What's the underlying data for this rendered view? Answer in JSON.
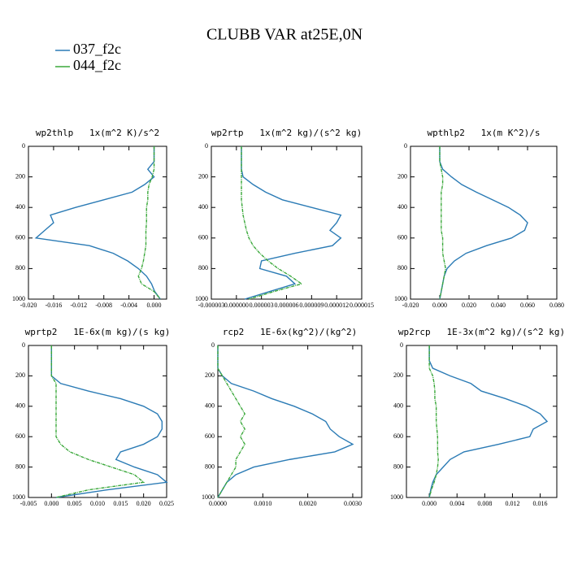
{
  "title": "CLUBB VAR at25E,0N",
  "legend": [
    {
      "name": "037_f2c",
      "color": "#2b7bb5"
    },
    {
      "name": "044_f2c",
      "color": "#3aa83a"
    }
  ],
  "chart_data": [
    {
      "type": "line",
      "title": "wp2thlp   1x(m^2 K)/s^2",
      "levels": [
        0,
        100,
        150,
        200,
        250,
        300,
        350,
        400,
        450,
        500,
        550,
        600,
        650,
        700,
        750,
        800,
        850,
        900,
        950,
        1000
      ],
      "series": [
        {
          "values": [
            0,
            0,
            -0.001,
            0,
            -0.0015,
            -0.0035,
            -0.008,
            -0.0125,
            -0.0165,
            -0.016,
            -0.0174,
            -0.0188,
            -0.0103,
            -0.0065,
            -0.0042,
            -0.0025,
            -0.0012,
            -0.0004,
            0.0001,
            0.001
          ]
        },
        {
          "values": [
            0,
            0,
            0,
            -0.0003,
            -0.0008,
            -0.001,
            -0.001,
            -0.0012,
            -0.0012,
            -0.0012,
            -0.0013,
            -0.0013,
            -0.0013,
            -0.0015,
            -0.0017,
            -0.002,
            -0.0025,
            -0.002,
            0,
            0.001
          ]
        }
      ],
      "xlim": [
        -0.02,
        0.002
      ],
      "xticks": [
        {
          "value": -0.02,
          "label": "-0.020"
        },
        {
          "value": -0.016,
          "label": "-0.016"
        },
        {
          "value": -0.012,
          "label": "-0.012"
        },
        {
          "value": -0.008,
          "label": "-0.008"
        },
        {
          "value": -0.004,
          "label": "-0.004"
        },
        {
          "value": 0,
          "label": "0.000"
        }
      ],
      "ylim": [
        1000,
        0
      ],
      "yticks": [
        0,
        200,
        400,
        600,
        800,
        1000
      ]
    },
    {
      "type": "line",
      "title": "wp2rtp   1x(m^2 kg)/(s^2 kg)",
      "levels": [
        0,
        100,
        150,
        200,
        250,
        300,
        350,
        400,
        450,
        500,
        550,
        600,
        650,
        700,
        750,
        800,
        850,
        900,
        950,
        1000
      ],
      "series": [
        {
          "values": [
            6e-07,
            6e-07,
            6e-07,
            8e-07,
            2e-06,
            3.5e-06,
            5.5e-06,
            9e-06,
            1.25e-05,
            1.2e-05,
            1.12e-05,
            1.25e-05,
            1.15e-05,
            7e-06,
            3e-06,
            2.8e-06,
            6e-06,
            7e-06,
            4e-06,
            1e-06
          ]
        },
        {
          "values": [
            6e-07,
            6e-07,
            6e-07,
            6e-07,
            6e-07,
            6e-07,
            6e-07,
            7e-07,
            8e-07,
            1e-06,
            1.2e-06,
            1.5e-06,
            2e-06,
            2.8e-06,
            3.8e-06,
            5e-06,
            6.5e-06,
            7.8e-06,
            4.5e-06,
            1.5e-06
          ]
        }
      ],
      "xlim": [
        -3e-06,
        1.5e-05
      ],
      "xticks": [
        {
          "value": -3e-06,
          "label": "-0.000003"
        },
        {
          "value": 0,
          "label": "0.000000"
        },
        {
          "value": 3e-06,
          "label": "0.000003"
        },
        {
          "value": 6e-06,
          "label": "0.000006"
        },
        {
          "value": 9e-06,
          "label": "0.000009"
        },
        {
          "value": 1.2e-05,
          "label": "0.000012"
        },
        {
          "value": 1.5e-05,
          "label": "0.000015"
        }
      ],
      "ylim": [
        1000,
        0
      ],
      "yticks": [
        0,
        200,
        400,
        600,
        800,
        1000
      ]
    },
    {
      "type": "line",
      "title": "wpthlp2   1x(m K^2)/s",
      "levels": [
        0,
        100,
        150,
        200,
        250,
        300,
        350,
        400,
        450,
        500,
        550,
        600,
        650,
        700,
        750,
        800,
        850,
        900,
        950,
        1000
      ],
      "series": [
        {
          "values": [
            0,
            0,
            0.002,
            0.008,
            0.015,
            0.025,
            0.036,
            0.047,
            0.055,
            0.06,
            0.058,
            0.049,
            0.032,
            0.018,
            0.01,
            0.005,
            0.003,
            0.002,
            0.001,
            0
          ]
        },
        {
          "values": [
            0,
            0,
            0.001,
            0.002,
            0.002,
            0.001,
            0.001,
            0.001,
            0.001,
            0.001,
            0.001,
            0.002,
            0.002,
            0.002,
            0.003,
            0.004,
            0.003,
            0.002,
            0.001,
            0
          ]
        }
      ],
      "xlim": [
        -0.02,
        0.08
      ],
      "xticks": [
        {
          "value": -0.02,
          "label": "-0.020"
        },
        {
          "value": 0,
          "label": "0.000"
        },
        {
          "value": 0.02,
          "label": "0.020"
        },
        {
          "value": 0.04,
          "label": "0.040"
        },
        {
          "value": 0.06,
          "label": "0.060"
        },
        {
          "value": 0.08,
          "label": "0.080"
        }
      ],
      "ylim": [
        1000,
        0
      ],
      "yticks": [
        0,
        200,
        400,
        600,
        800,
        1000
      ]
    },
    {
      "type": "line",
      "title": "wprtp2   1E-6x(m kg)/(s kg)",
      "levels": [
        0,
        100,
        150,
        200,
        250,
        300,
        350,
        400,
        450,
        500,
        550,
        600,
        650,
        700,
        750,
        800,
        850,
        900,
        950,
        1000
      ],
      "series": [
        {
          "values": [
            0,
            0,
            0,
            0,
            0.002,
            0.008,
            0.015,
            0.02,
            0.023,
            0.024,
            0.024,
            0.023,
            0.02,
            0.015,
            0.014,
            0.018,
            0.023,
            0.025,
            0.012,
            0.001
          ]
        },
        {
          "values": [
            0,
            0,
            0,
            0,
            0.001,
            0.001,
            0.001,
            0.001,
            0.001,
            0.001,
            0.001,
            0.001,
            0.002,
            0.004,
            0.008,
            0.013,
            0.018,
            0.02,
            0.008,
            0.001
          ]
        }
      ],
      "xlim": [
        -0.005,
        0.025
      ],
      "xticks": [
        {
          "value": -0.005,
          "label": "-0.005"
        },
        {
          "value": 0,
          "label": "0.000"
        },
        {
          "value": 0.005,
          "label": "0.005"
        },
        {
          "value": 0.01,
          "label": "0.010"
        },
        {
          "value": 0.015,
          "label": "0.015"
        },
        {
          "value": 0.02,
          "label": "0.020"
        },
        {
          "value": 0.025,
          "label": "0.025"
        }
      ],
      "ylim": [
        1000,
        0
      ],
      "yticks": [
        0,
        200,
        400,
        600,
        800,
        1000
      ]
    },
    {
      "type": "line",
      "title": "rcp2   1E-6x(kg^2)/(kg^2)",
      "levels": [
        0,
        100,
        150,
        200,
        250,
        300,
        350,
        400,
        450,
        500,
        550,
        600,
        650,
        700,
        750,
        800,
        850,
        900,
        950,
        1000
      ],
      "series": [
        {
          "values": [
            0,
            0,
            0,
            0.0001,
            0.0003,
            0.0008,
            0.0012,
            0.0017,
            0.0021,
            0.0024,
            0.0025,
            0.0027,
            0.003,
            0.0026,
            0.0016,
            0.0008,
            0.0004,
            0.0002,
            0.0001,
            0
          ]
        },
        {
          "values": [
            0,
            0,
            0,
            0.0001,
            0.0002,
            0.0003,
            0.0004,
            0.0005,
            0.0006,
            0.0005,
            0.0006,
            0.0005,
            0.0006,
            0.0005,
            0.0004,
            0.0004,
            0.0003,
            0.0002,
            0.0001,
            0
          ]
        }
      ],
      "xlim": [
        0,
        0.0032
      ],
      "xticks": [
        {
          "value": 0,
          "label": "0.0000"
        },
        {
          "value": 0.001,
          "label": "0.0010"
        },
        {
          "value": 0.002,
          "label": "0.0020"
        },
        {
          "value": 0.003,
          "label": "0.0030"
        }
      ],
      "ylim": [
        1000,
        0
      ],
      "yticks": [
        0,
        200,
        400,
        600,
        800,
        1000
      ]
    },
    {
      "type": "line",
      "title": "wp2rcp   1E-3x(m^2 kg)/(s^2 kg)",
      "levels": [
        0,
        100,
        150,
        200,
        250,
        300,
        350,
        400,
        450,
        500,
        550,
        600,
        650,
        700,
        750,
        800,
        850,
        900,
        950,
        1000
      ],
      "series": [
        {
          "values": [
            0,
            0,
            0.0005,
            0.003,
            0.006,
            0.0075,
            0.011,
            0.014,
            0.016,
            0.017,
            0.015,
            0.0145,
            0.01,
            0.005,
            0.003,
            0.002,
            0.001,
            0.0005,
            0.0002,
            0
          ]
        },
        {
          "values": [
            0,
            0,
            0,
            0.0005,
            0.0007,
            0.0008,
            0.0008,
            0.001,
            0.001,
            0.001,
            0.0011,
            0.0012,
            0.0012,
            0.0012,
            0.0013,
            0.0012,
            0.001,
            0.0007,
            0.0003,
            0
          ]
        }
      ],
      "xlim": [
        -0.0033,
        0.0184
      ],
      "xticks": [
        {
          "value": 0,
          "label": "0.000"
        },
        {
          "value": 0.004,
          "label": "0.004"
        },
        {
          "value": 0.008,
          "label": "0.008"
        },
        {
          "value": 0.012,
          "label": "0.012"
        },
        {
          "value": 0.016,
          "label": "0.016"
        }
      ],
      "ylim": [
        1000,
        0
      ],
      "yticks": [
        0,
        200,
        400,
        600,
        800,
        1000
      ]
    }
  ]
}
